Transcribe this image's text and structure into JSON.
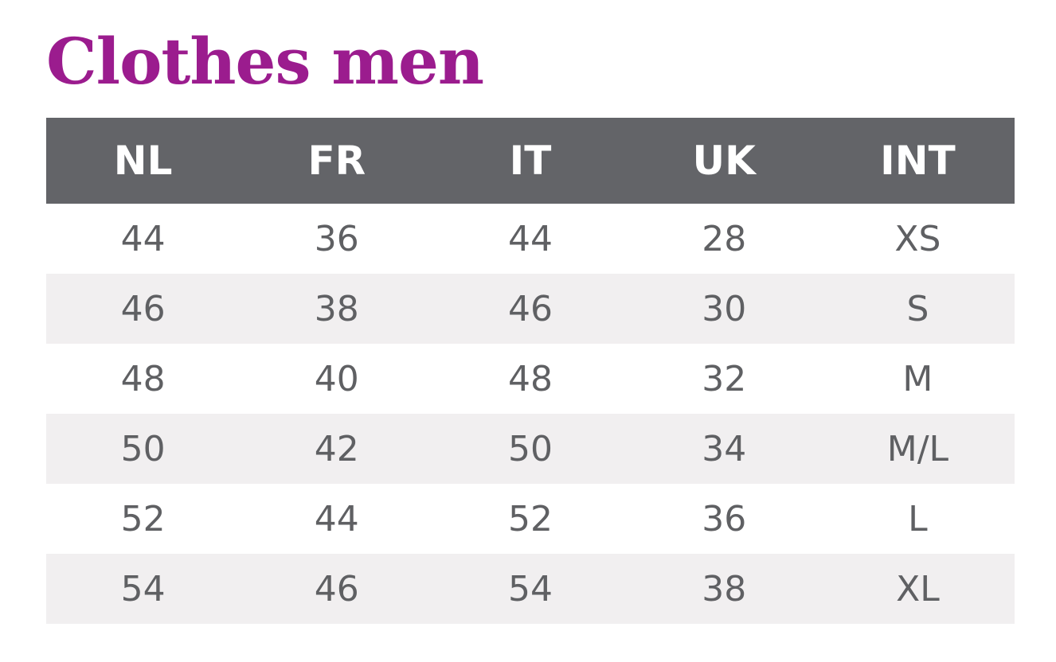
{
  "title": "Clothes men",
  "table": {
    "header": [
      "NL",
      "FR",
      "IT",
      "UK",
      "INT"
    ],
    "rows": [
      [
        44,
        36,
        44,
        28,
        "XS"
      ],
      [
        46,
        38,
        46,
        30,
        "S"
      ],
      [
        48,
        40,
        48,
        32,
        "M"
      ],
      [
        50,
        42,
        50,
        34,
        "M/L"
      ],
      [
        52,
        44,
        52,
        36,
        "L"
      ],
      [
        54,
        46,
        54,
        38,
        "XL"
      ]
    ]
  }
}
